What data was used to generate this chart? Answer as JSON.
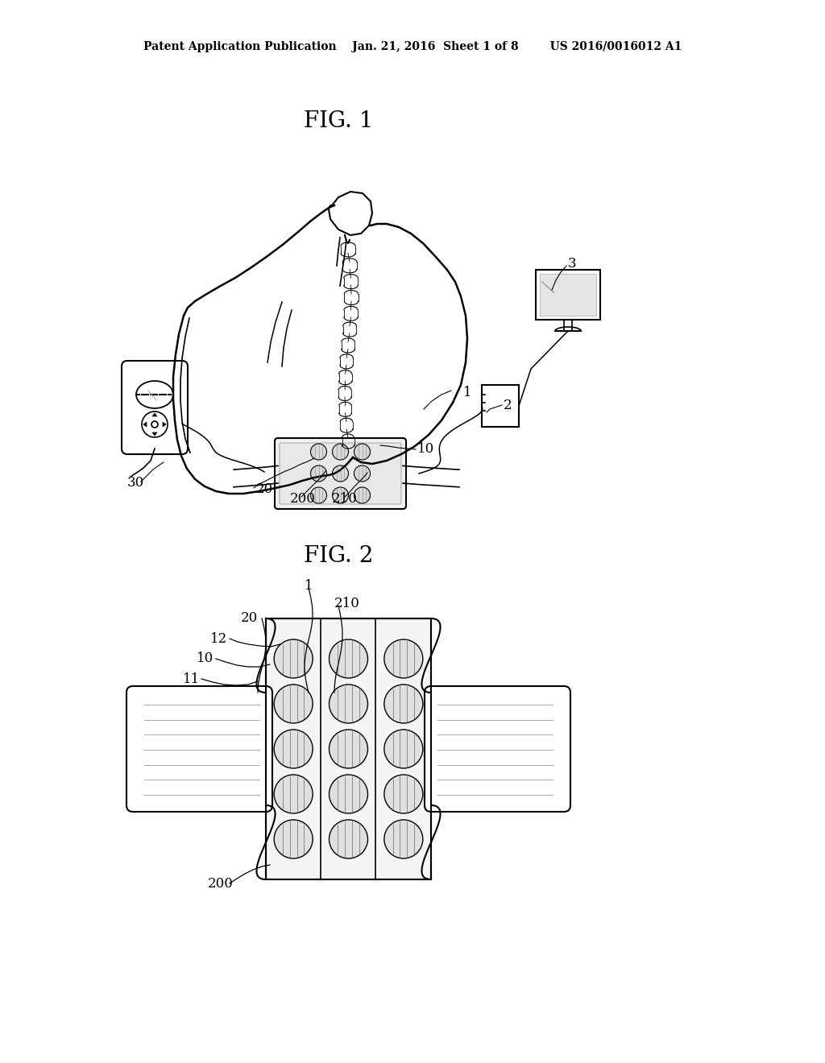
{
  "bg_color": "#ffffff",
  "header": "Patent Application Publication    Jan. 21, 2016  Sheet 1 of 8        US 2016/0016012 A1",
  "fig1_label": "FIG. 1",
  "fig2_label": "FIG. 2",
  "lc": "#000000",
  "lw": 1.5
}
